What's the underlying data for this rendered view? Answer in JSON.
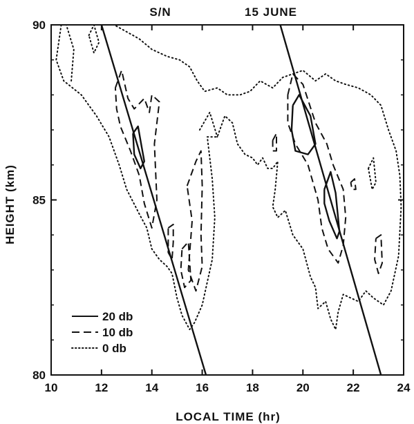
{
  "chart_data": {
    "type": "line",
    "title_left": "S/N",
    "title_right": "15 JUNE",
    "xlabel": "LOCAL TIME (hr)",
    "ylabel": "HEIGHT (km)",
    "xlim": [
      10,
      24
    ],
    "ylim": [
      80,
      90
    ],
    "x_ticks": [
      10,
      12,
      14,
      16,
      18,
      20,
      22,
      24
    ],
    "y_ticks": [
      80,
      85,
      90
    ],
    "colors": {
      "ink": "#111111",
      "background": "#ffffff"
    },
    "legend_position": "bottom-left",
    "legend": [
      {
        "label": "20 db",
        "style": "solid"
      },
      {
        "label": "10 db",
        "style": "dashed"
      },
      {
        "label": "0 db",
        "style": "dotted"
      }
    ],
    "straight_lines": [
      {
        "points": [
          [
            12.0,
            90.0
          ],
          [
            16.15,
            80.0
          ]
        ]
      },
      {
        "points": [
          [
            19.1,
            90.0
          ],
          [
            23.1,
            80.0
          ]
        ]
      }
    ],
    "contours": [
      {
        "level": "20 db",
        "points": [
          [
            13.25,
            86.9
          ],
          [
            13.45,
            87.1
          ],
          [
            13.6,
            86.5
          ],
          [
            13.7,
            86.1
          ],
          [
            13.55,
            85.9
          ],
          [
            13.3,
            86.3
          ],
          [
            13.25,
            86.9
          ]
        ]
      },
      {
        "level": "20 db",
        "points": [
          [
            19.6,
            87.7
          ],
          [
            19.85,
            88.0
          ],
          [
            20.3,
            87.4
          ],
          [
            20.5,
            86.6
          ],
          [
            20.2,
            86.3
          ],
          [
            19.7,
            86.4
          ],
          [
            19.55,
            87.0
          ],
          [
            19.6,
            87.7
          ]
        ]
      },
      {
        "level": "20 db",
        "points": [
          [
            20.85,
            85.3
          ],
          [
            21.1,
            85.8
          ],
          [
            21.3,
            85.2
          ],
          [
            21.45,
            84.1
          ],
          [
            21.35,
            83.9
          ],
          [
            21.05,
            84.4
          ],
          [
            20.85,
            84.9
          ],
          [
            20.85,
            85.3
          ]
        ]
      },
      {
        "level": "10 db",
        "points": [
          [
            12.55,
            88.2
          ],
          [
            12.8,
            88.7
          ],
          [
            13.05,
            87.9
          ],
          [
            13.3,
            87.6
          ],
          [
            13.7,
            87.9
          ],
          [
            13.9,
            87.5
          ],
          [
            14.0,
            88.0
          ],
          [
            14.3,
            87.8
          ],
          [
            14.1,
            86.6
          ],
          [
            14.2,
            85.0
          ],
          [
            14.0,
            84.2
          ],
          [
            13.7,
            84.9
          ],
          [
            13.5,
            85.7
          ],
          [
            13.15,
            86.4
          ],
          [
            12.75,
            87.1
          ],
          [
            12.6,
            87.6
          ],
          [
            12.55,
            88.2
          ]
        ]
      },
      {
        "level": "10 db",
        "points": [
          [
            15.4,
            85.4
          ],
          [
            15.75,
            86.1
          ],
          [
            15.95,
            86.4
          ],
          [
            16.0,
            85.4
          ],
          [
            15.95,
            84.0
          ],
          [
            16.0,
            83.1
          ],
          [
            15.75,
            82.4
          ],
          [
            15.45,
            83.0
          ],
          [
            15.6,
            84.4
          ],
          [
            15.4,
            85.4
          ]
        ]
      },
      {
        "level": "10 db",
        "points": [
          [
            14.65,
            84.2
          ],
          [
            14.85,
            84.3
          ],
          [
            14.85,
            83.8
          ],
          [
            14.8,
            83.3
          ],
          [
            14.65,
            83.5
          ],
          [
            14.65,
            84.2
          ]
        ]
      },
      {
        "level": "10 db",
        "points": [
          [
            15.2,
            83.6
          ],
          [
            15.45,
            83.8
          ],
          [
            15.55,
            82.7
          ],
          [
            15.3,
            82.5
          ],
          [
            15.15,
            83.0
          ],
          [
            15.2,
            83.6
          ]
        ]
      },
      {
        "level": "10 db",
        "points": [
          [
            19.4,
            88.0
          ],
          [
            19.6,
            88.6
          ],
          [
            20.0,
            88.3
          ],
          [
            20.5,
            87.2
          ],
          [
            20.95,
            86.6
          ],
          [
            21.2,
            86.0
          ],
          [
            21.6,
            85.3
          ],
          [
            21.7,
            84.5
          ],
          [
            21.6,
            83.7
          ],
          [
            21.4,
            83.2
          ],
          [
            21.0,
            83.6
          ],
          [
            20.75,
            84.2
          ],
          [
            20.6,
            85.0
          ],
          [
            20.2,
            86.0
          ],
          [
            19.7,
            86.6
          ],
          [
            19.4,
            87.2
          ],
          [
            19.4,
            88.0
          ]
        ]
      },
      {
        "level": "10 db",
        "points": [
          [
            18.8,
            86.7
          ],
          [
            18.95,
            86.9
          ],
          [
            18.95,
            86.4
          ],
          [
            18.8,
            86.4
          ],
          [
            18.8,
            86.7
          ]
        ]
      },
      {
        "level": "10 db",
        "points": [
          [
            22.9,
            83.9
          ],
          [
            23.1,
            84.0
          ],
          [
            23.15,
            83.2
          ],
          [
            23.0,
            82.9
          ],
          [
            22.85,
            83.3
          ],
          [
            22.9,
            83.9
          ]
        ]
      },
      {
        "level": "10 db",
        "points": [
          [
            21.9,
            85.5
          ],
          [
            22.05,
            85.6
          ],
          [
            22.1,
            85.3
          ],
          [
            21.95,
            85.3
          ],
          [
            21.9,
            85.5
          ]
        ]
      },
      {
        "level": "0 db",
        "points": [
          [
            10.4,
            90.0
          ],
          [
            10.2,
            89.0
          ],
          [
            10.5,
            88.4
          ],
          [
            11.2,
            88.0
          ],
          [
            11.8,
            87.4
          ],
          [
            12.3,
            86.8
          ],
          [
            12.7,
            86.0
          ],
          [
            13.0,
            85.3
          ],
          [
            13.5,
            84.6
          ],
          [
            13.8,
            84.2
          ],
          [
            14.0,
            83.6
          ],
          [
            14.3,
            83.3
          ],
          [
            14.6,
            83.1
          ],
          [
            14.8,
            82.9
          ],
          [
            15.0,
            82.2
          ],
          [
            15.2,
            81.7
          ],
          [
            15.5,
            81.3
          ],
          [
            15.7,
            81.5
          ],
          [
            16.0,
            82.0
          ],
          [
            16.4,
            83.3
          ],
          [
            16.5,
            84.5
          ],
          [
            16.4,
            85.6
          ],
          [
            16.2,
            86.8
          ],
          [
            16.6,
            86.8
          ],
          [
            16.9,
            87.4
          ],
          [
            17.2,
            87.2
          ],
          [
            17.4,
            86.6
          ],
          [
            17.7,
            86.3
          ],
          [
            18.0,
            86.2
          ],
          [
            18.2,
            86.0
          ],
          [
            18.4,
            86.2
          ],
          [
            18.6,
            85.9
          ],
          [
            18.8,
            85.9
          ],
          [
            19.0,
            86.1
          ],
          [
            18.9,
            85.3
          ],
          [
            18.8,
            84.8
          ],
          [
            19.0,
            84.5
          ],
          [
            19.3,
            84.7
          ],
          [
            19.6,
            84.0
          ],
          [
            20.0,
            83.6
          ],
          [
            20.3,
            82.8
          ],
          [
            20.5,
            82.5
          ],
          [
            20.6,
            81.9
          ],
          [
            20.9,
            82.1
          ],
          [
            21.1,
            81.6
          ],
          [
            21.3,
            81.3
          ],
          [
            21.4,
            81.8
          ],
          [
            21.6,
            82.3
          ],
          [
            21.9,
            82.2
          ],
          [
            22.2,
            82.1
          ],
          [
            22.5,
            82.4
          ],
          [
            22.8,
            82.2
          ],
          [
            23.2,
            82.0
          ],
          [
            23.5,
            82.4
          ],
          [
            23.8,
            83.4
          ],
          [
            23.9,
            84.8
          ],
          [
            23.85,
            85.7
          ],
          [
            23.7,
            86.4
          ],
          [
            23.4,
            87.0
          ],
          [
            23.1,
            87.7
          ],
          [
            22.7,
            88.0
          ],
          [
            22.2,
            88.2
          ],
          [
            21.7,
            88.3
          ],
          [
            21.3,
            88.4
          ],
          [
            20.9,
            88.6
          ],
          [
            20.5,
            88.4
          ],
          [
            20.0,
            88.7
          ],
          [
            19.6,
            88.6
          ],
          [
            19.2,
            88.5
          ],
          [
            18.8,
            88.2
          ],
          [
            18.3,
            88.4
          ],
          [
            17.9,
            88.1
          ],
          [
            17.5,
            88.0
          ],
          [
            17.0,
            88.0
          ],
          [
            16.6,
            88.2
          ],
          [
            16.1,
            88.1
          ],
          [
            15.8,
            88.4
          ],
          [
            15.5,
            88.8
          ],
          [
            15.1,
            89.0
          ],
          [
            14.6,
            89.1
          ],
          [
            14.0,
            89.3
          ],
          [
            13.5,
            89.6
          ],
          [
            13.0,
            89.8
          ],
          [
            12.5,
            90.0
          ]
        ]
      },
      {
        "level": "0 db",
        "points": [
          [
            10.8,
            88.4
          ],
          [
            10.9,
            89.3
          ],
          [
            10.6,
            90.0
          ]
        ]
      },
      {
        "level": "0 db",
        "points": [
          [
            11.5,
            89.7
          ],
          [
            11.7,
            90.0
          ],
          [
            11.9,
            89.5
          ],
          [
            11.7,
            89.2
          ],
          [
            11.5,
            89.7
          ]
        ]
      },
      {
        "level": "0 db",
        "points": [
          [
            15.9,
            87.0
          ],
          [
            16.3,
            87.5
          ],
          [
            16.6,
            86.8
          ]
        ]
      },
      {
        "level": "0 db",
        "points": [
          [
            22.6,
            85.9
          ],
          [
            22.8,
            86.2
          ],
          [
            22.9,
            85.5
          ],
          [
            22.75,
            85.3
          ],
          [
            22.6,
            85.9
          ]
        ]
      }
    ]
  }
}
